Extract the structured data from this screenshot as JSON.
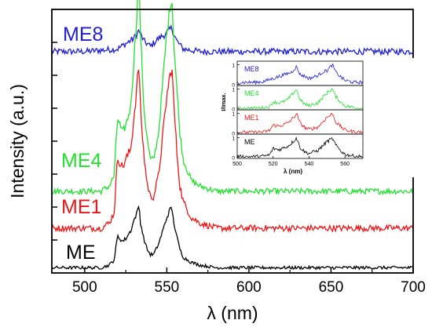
{
  "chart_data": [
    {
      "type": "line",
      "xlabel": "λ (nm)",
      "ylabel": "Intensity (a.u.)",
      "xlim": [
        480,
        700
      ],
      "x_ticks": [
        "500",
        "550",
        "600",
        "650",
        "700"
      ],
      "y_tick_labels": false,
      "grid": false,
      "legend": "labels placed beside each trace",
      "series": [
        {
          "name": "ME8",
          "color": "#1f1fd0",
          "offset": 0.84,
          "x": [
            480,
            500,
            520,
            525,
            530,
            533,
            536,
            540,
            545,
            550,
            553,
            556,
            560,
            570,
            600,
            650,
            700
          ],
          "values": [
            0.0,
            0.0,
            0.01,
            0.03,
            0.05,
            0.08,
            0.04,
            0.02,
            0.05,
            0.07,
            0.09,
            0.04,
            0.01,
            0.0,
            0.0,
            0.0,
            0.0
          ]
        },
        {
          "name": "ME4",
          "color": "#22e02e",
          "offset": 0.31,
          "x": [
            480,
            500,
            510,
            515,
            518,
            520,
            523,
            525,
            528,
            530,
            532,
            533,
            534,
            536,
            538,
            540,
            542,
            545,
            548,
            550,
            552,
            553,
            554,
            556,
            558,
            560,
            565,
            570,
            580,
            600,
            650,
            700
          ],
          "values": [
            0.0,
            0.0,
            0.0,
            0.02,
            0.06,
            0.28,
            0.22,
            0.25,
            0.32,
            0.5,
            0.7,
            0.78,
            0.6,
            0.32,
            0.2,
            0.12,
            0.12,
            0.22,
            0.45,
            0.6,
            0.7,
            0.75,
            0.6,
            0.4,
            0.22,
            0.12,
            0.04,
            0.02,
            0.0,
            0.0,
            0.0,
            0.0
          ]
        },
        {
          "name": "ME1",
          "color": "#e81818",
          "offset": 0.17,
          "x": [
            480,
            500,
            510,
            515,
            518,
            520,
            523,
            525,
            528,
            530,
            532,
            533,
            534,
            536,
            538,
            540,
            542,
            545,
            548,
            550,
            552,
            553,
            554,
            556,
            558,
            560,
            565,
            570,
            580,
            600,
            650,
            700
          ],
          "values": [
            0.0,
            0.0,
            0.0,
            0.02,
            0.06,
            0.27,
            0.23,
            0.26,
            0.3,
            0.42,
            0.55,
            0.63,
            0.45,
            0.28,
            0.17,
            0.12,
            0.12,
            0.2,
            0.38,
            0.5,
            0.58,
            0.62,
            0.5,
            0.3,
            0.16,
            0.1,
            0.04,
            0.02,
            0.0,
            0.0,
            0.0,
            0.0
          ]
        },
        {
          "name": "ME",
          "color": "#000000",
          "offset": 0.02,
          "x": [
            480,
            500,
            510,
            515,
            518,
            520,
            523,
            525,
            528,
            530,
            532,
            533,
            534,
            536,
            538,
            540,
            542,
            545,
            548,
            550,
            552,
            553,
            554,
            556,
            558,
            560,
            565,
            570,
            580,
            600,
            650,
            700
          ],
          "values": [
            0.0,
            0.0,
            0.0,
            0.01,
            0.03,
            0.12,
            0.1,
            0.11,
            0.14,
            0.18,
            0.21,
            0.24,
            0.17,
            0.11,
            0.07,
            0.05,
            0.05,
            0.09,
            0.15,
            0.19,
            0.22,
            0.23,
            0.18,
            0.12,
            0.07,
            0.04,
            0.02,
            0.01,
            0.0,
            0.0,
            0.0,
            0.0
          ]
        }
      ]
    },
    {
      "type": "line",
      "xlabel": "λ (nm)",
      "ylabel": "I/Imax.",
      "xlim": [
        500,
        570
      ],
      "x_ticks": [
        "500",
        "520",
        "540",
        "560"
      ],
      "panel_y_ticks": [
        "0",
        "1"
      ],
      "panels": [
        {
          "name": "ME8",
          "color": "#1f1fd0",
          "x": [
            500,
            510,
            515,
            520,
            525,
            528,
            530,
            533,
            535,
            538,
            540,
            545,
            548,
            550,
            553,
            555,
            558,
            560,
            565,
            570
          ],
          "values": [
            0.1,
            0.1,
            0.15,
            0.3,
            0.45,
            0.55,
            0.6,
            0.9,
            0.5,
            0.4,
            0.3,
            0.45,
            0.65,
            0.7,
            1.0,
            0.6,
            0.35,
            0.2,
            0.1,
            0.1
          ]
        },
        {
          "name": "ME4",
          "color": "#22e02e",
          "x": [
            500,
            510,
            515,
            518,
            520,
            523,
            525,
            528,
            530,
            532,
            533,
            535,
            538,
            540,
            545,
            548,
            550,
            552,
            553,
            555,
            558,
            560,
            565,
            570
          ],
          "values": [
            0.02,
            0.02,
            0.05,
            0.1,
            0.35,
            0.3,
            0.32,
            0.45,
            0.65,
            0.9,
            1.0,
            0.45,
            0.2,
            0.15,
            0.3,
            0.6,
            0.8,
            0.95,
            1.0,
            0.6,
            0.3,
            0.15,
            0.05,
            0.02
          ]
        },
        {
          "name": "ME1",
          "color": "#e81818",
          "x": [
            500,
            510,
            515,
            518,
            520,
            523,
            525,
            528,
            530,
            532,
            533,
            535,
            538,
            540,
            545,
            548,
            550,
            552,
            553,
            555,
            558,
            560,
            565,
            570
          ],
          "values": [
            0.03,
            0.03,
            0.06,
            0.12,
            0.4,
            0.35,
            0.4,
            0.5,
            0.65,
            0.85,
            1.0,
            0.5,
            0.25,
            0.18,
            0.3,
            0.6,
            0.8,
            0.9,
            1.0,
            0.55,
            0.3,
            0.15,
            0.06,
            0.03
          ]
        },
        {
          "name": "ME",
          "color": "#000000",
          "x": [
            500,
            510,
            515,
            518,
            520,
            523,
            525,
            528,
            530,
            532,
            533,
            535,
            538,
            540,
            545,
            548,
            550,
            552,
            553,
            555,
            558,
            560,
            565,
            570
          ],
          "values": [
            0.03,
            0.03,
            0.06,
            0.12,
            0.45,
            0.38,
            0.45,
            0.55,
            0.7,
            0.88,
            1.0,
            0.5,
            0.25,
            0.2,
            0.35,
            0.62,
            0.8,
            0.9,
            0.95,
            0.6,
            0.3,
            0.15,
            0.06,
            0.03
          ]
        }
      ]
    }
  ]
}
